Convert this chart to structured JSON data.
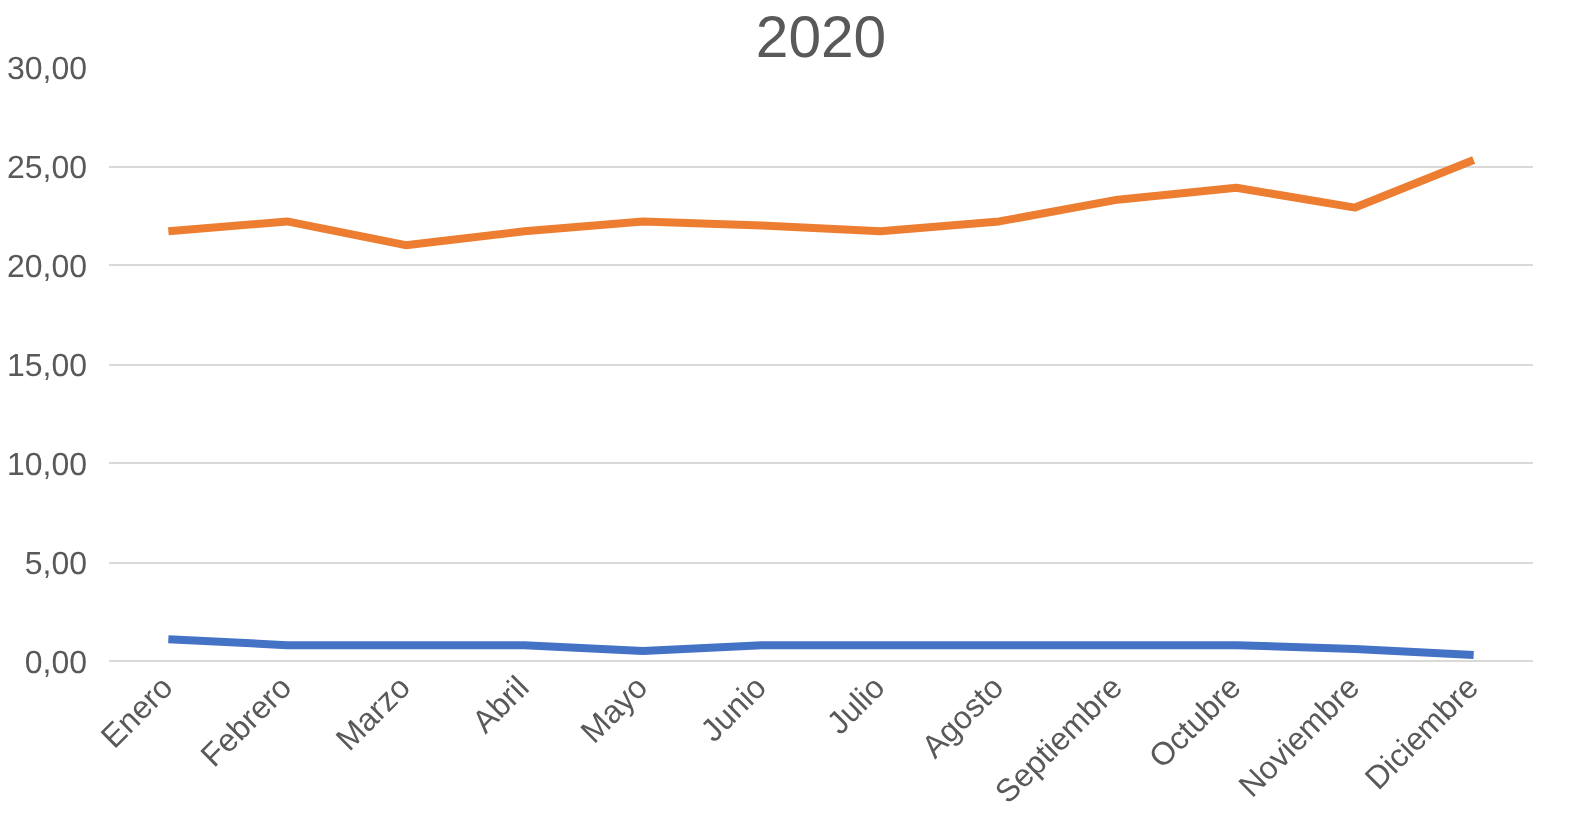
{
  "chart_data": {
    "type": "line",
    "title": "2020",
    "categories": [
      "Enero",
      "Febrero",
      "Marzo",
      "Abril",
      "Mayo",
      "Junio",
      "Julio",
      "Agosto",
      "Septiembre",
      "Octubre",
      "Noviembre",
      "Diciembre"
    ],
    "series": [
      {
        "color": "#4472c4",
        "values": [
          1.1,
          0.8,
          0.8,
          0.8,
          0.5,
          0.8,
          0.8,
          0.8,
          0.8,
          0.8,
          0.6,
          0.3
        ]
      },
      {
        "color": "#ed7d31",
        "values": [
          21.7,
          22.2,
          21.0,
          21.7,
          22.2,
          22.0,
          21.7,
          22.2,
          23.3,
          23.9,
          22.9,
          25.3
        ]
      }
    ],
    "ylim": [
      0,
      30
    ],
    "yticks": [
      {
        "value": 0,
        "label": "0,00"
      },
      {
        "value": 5,
        "label": "5,00"
      },
      {
        "value": 10,
        "label": "10,00"
      },
      {
        "value": 15,
        "label": "15,00"
      },
      {
        "value": 20,
        "label": "20,00"
      },
      {
        "value": 25,
        "label": "25,00"
      },
      {
        "value": 30,
        "label": "30,00"
      }
    ],
    "grid": "y",
    "marker": "none",
    "line_style": "solid"
  }
}
